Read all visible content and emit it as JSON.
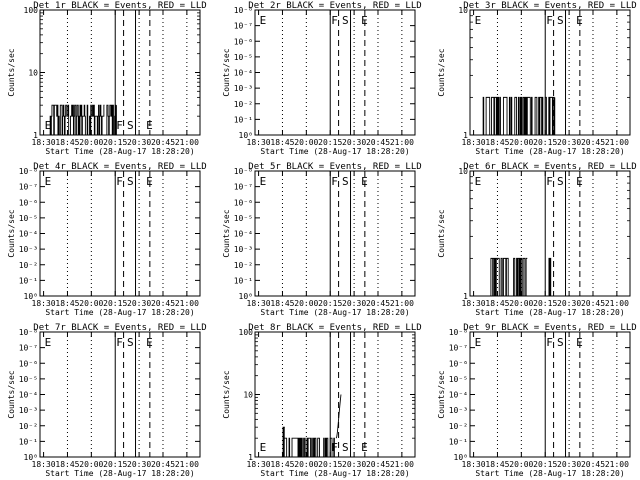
{
  "chart_data": [
    {
      "title": "Det 1r BLACK = Events, RED = LLD",
      "type": "line",
      "ylabel": "Counts/sec",
      "xlabel": "Start Time (28-Aug-17 18:28:20)",
      "yscale": "log",
      "ylim": [
        1,
        100
      ],
      "ytick_labels": [
        "1",
        "10",
        "100"
      ],
      "x_tick_labels": [
        "18:30",
        "18:45",
        "20:00",
        "20:15",
        "20:30",
        "20:45",
        "21:00"
      ],
      "markers": [
        {
          "label": "E",
          "x": 0.0
        },
        {
          "label": "F",
          "x": 3.0
        },
        {
          "label": "S",
          "x": 3.45
        },
        {
          "label": "E",
          "x": 4.25
        }
      ],
      "dotted_x": [
        1,
        2,
        4,
        5,
        6
      ],
      "solid_x": [
        3.0,
        3.85
      ],
      "dashed_x": [
        3.35,
        4.45
      ],
      "series": [
        {
          "color": "#000000",
          "segments": [
            {
              "x_range": [
                0.25,
                2.55
              ],
              "levels": [
                1,
                2,
                3
              ],
              "style": "spiky"
            },
            {
              "x_range": [
                2.6,
                3.05
              ],
              "levels": [
                1,
                2,
                3
              ],
              "style": "spiky"
            }
          ]
        }
      ]
    },
    {
      "title": "Det 2r BLACK = Events, RED = LLD",
      "type": "line",
      "ylabel": "Counts/sec",
      "xlabel": "Start Time (28-Aug-17 18:28:20)",
      "yscale": "log",
      "ylim": [
        1e-09,
        1
      ],
      "ytick_labels": [
        "10⁰",
        "10⁻¹",
        "10⁻²",
        "10⁻³",
        "10⁻⁴",
        "10⁻⁵",
        "10⁻⁶",
        "10⁻⁷",
        "10⁻⁸"
      ],
      "x_tick_labels": [
        "18:30",
        "18:45",
        "20:00",
        "20:15",
        "20:30",
        "20:45",
        "21:00"
      ],
      "markers": [
        {
          "label": "E",
          "x": 0.0
        },
        {
          "label": "F",
          "x": 3.0
        },
        {
          "label": "S",
          "x": 3.45
        },
        {
          "label": "E",
          "x": 4.25
        }
      ],
      "dotted_x": [
        1,
        2,
        4,
        5,
        6
      ],
      "solid_x": [
        3.0,
        3.85
      ],
      "dashed_x": [
        3.35,
        4.45
      ],
      "series": []
    },
    {
      "title": "Det 3r BLACK = Events, RED = LLD",
      "type": "line",
      "ylabel": "Counts/sec",
      "xlabel": "Start Time (28-Aug-17 18:28:20)",
      "yscale": "log",
      "ylim": [
        1,
        10
      ],
      "ytick_labels": [
        "1",
        "10"
      ],
      "x_tick_labels": [
        "18:30",
        "18:45",
        "20:00",
        "20:15",
        "20:30",
        "20:45",
        "21:00"
      ],
      "markers": [
        {
          "label": "E",
          "x": 0.0
        },
        {
          "label": "F",
          "x": 3.0
        },
        {
          "label": "S",
          "x": 3.45
        },
        {
          "label": "E",
          "x": 4.25
        }
      ],
      "dotted_x": [
        1,
        2,
        4,
        5,
        6
      ],
      "solid_x": [
        3.0,
        3.85
      ],
      "dashed_x": [
        3.35,
        4.45
      ],
      "series": [
        {
          "color": "#000000",
          "segments": [
            {
              "x_range": [
                0.35,
                3.4
              ],
              "levels": [
                1,
                2
              ],
              "style": "dense"
            }
          ]
        }
      ]
    },
    {
      "title": "Det 4r BLACK = Events, RED = LLD",
      "type": "line",
      "ylabel": "Counts/sec",
      "xlabel": "Start Time (28-Aug-17 18:28:20)",
      "yscale": "log",
      "ylim": [
        1e-09,
        1
      ],
      "ytick_labels": [
        "10⁰",
        "10⁻¹",
        "10⁻²",
        "10⁻³",
        "10⁻⁴",
        "10⁻⁵",
        "10⁻⁶",
        "10⁻⁷",
        "10⁻⁸"
      ],
      "x_tick_labels": [
        "18:30",
        "18:45",
        "20:00",
        "20:15",
        "20:30",
        "20:45",
        "21:00"
      ],
      "markers": [
        {
          "label": "E",
          "x": 0.0
        },
        {
          "label": "F",
          "x": 3.0
        },
        {
          "label": "S",
          "x": 3.45
        },
        {
          "label": "E",
          "x": 4.25
        }
      ],
      "dotted_x": [
        1,
        2,
        4,
        5,
        6
      ],
      "solid_x": [
        3.0,
        3.85
      ],
      "dashed_x": [
        3.35,
        4.45
      ],
      "series": []
    },
    {
      "title": "Det 5r BLACK = Events, RED = LLD",
      "type": "line",
      "ylabel": "Counts/sec",
      "xlabel": "Start Time (28-Aug-17 18:28:20)",
      "yscale": "log",
      "ylim": [
        1e-09,
        1
      ],
      "ytick_labels": [
        "10⁰",
        "10⁻¹",
        "10⁻²",
        "10⁻³",
        "10⁻⁴",
        "10⁻⁵",
        "10⁻⁶",
        "10⁻⁷",
        "10⁻⁸"
      ],
      "x_tick_labels": [
        "18:30",
        "18:45",
        "20:00",
        "20:15",
        "20:30",
        "20:45",
        "21:00"
      ],
      "markers": [
        {
          "label": "E",
          "x": 0.0
        },
        {
          "label": "F",
          "x": 3.0
        },
        {
          "label": "S",
          "x": 3.45
        },
        {
          "label": "E",
          "x": 4.25
        }
      ],
      "dotted_x": [
        1,
        2,
        4,
        5,
        6
      ],
      "solid_x": [
        3.0,
        3.85
      ],
      "dashed_x": [
        3.35,
        4.45
      ],
      "series": []
    },
    {
      "title": "Det 6r BLACK = Events, RED = LLD",
      "type": "line",
      "ylabel": "Counts/sec",
      "xlabel": "Start Time (28-Aug-17 18:28:20)",
      "yscale": "log",
      "ylim": [
        1,
        10
      ],
      "ytick_labels": [
        "1",
        "10"
      ],
      "x_tick_labels": [
        "18:30",
        "18:45",
        "20:00",
        "20:15",
        "20:30",
        "20:45",
        "21:00"
      ],
      "markers": [
        {
          "label": "E",
          "x": 0.0
        },
        {
          "label": "F",
          "x": 3.0
        },
        {
          "label": "S",
          "x": 3.45
        },
        {
          "label": "E",
          "x": 4.25
        }
      ],
      "dotted_x": [
        1,
        2,
        4,
        5,
        6
      ],
      "solid_x": [
        3.0,
        3.85
      ],
      "dashed_x": [
        3.35,
        4.45
      ],
      "series": [
        {
          "color": "#000000",
          "segments": [
            {
              "x_range": [
                0.7,
                2.25
              ],
              "levels": [
                1,
                2
              ],
              "style": "dense"
            },
            {
              "x_range": [
                3.1,
                3.25
              ],
              "levels": [
                1,
                2
              ],
              "style": "dense"
            }
          ]
        }
      ]
    },
    {
      "title": "Det 7r BLACK = Events, RED = LLD",
      "type": "line",
      "ylabel": "Counts/sec",
      "xlabel": "Start Time (28-Aug-17 18:28:20)",
      "yscale": "log",
      "ylim": [
        1e-09,
        1
      ],
      "ytick_labels": [
        "10⁰",
        "10⁻¹",
        "10⁻²",
        "10⁻³",
        "10⁻⁴",
        "10⁻⁵",
        "10⁻⁶",
        "10⁻⁷",
        "10⁻⁸"
      ],
      "x_tick_labels": [
        "18:30",
        "18:45",
        "20:00",
        "20:15",
        "20:30",
        "20:45",
        "21:00"
      ],
      "markers": [
        {
          "label": "E",
          "x": 0.0
        },
        {
          "label": "F",
          "x": 3.0
        },
        {
          "label": "S",
          "x": 3.45
        },
        {
          "label": "E",
          "x": 4.25
        }
      ],
      "dotted_x": [
        1,
        2,
        4,
        5,
        6
      ],
      "solid_x": [
        3.0,
        3.85
      ],
      "dashed_x": [
        3.35,
        4.45
      ],
      "series": []
    },
    {
      "title": "Det 8r BLACK = Events, RED = LLD",
      "type": "line",
      "ylabel": "Counts/sec",
      "xlabel": "Start Time (28-Aug-17 18:28:20)",
      "yscale": "log",
      "ylim": [
        1,
        100
      ],
      "ytick_labels": [
        "1",
        "10",
        "100"
      ],
      "x_tick_labels": [
        "18:30",
        "18:45",
        "20:00",
        "20:15",
        "20:30",
        "20:45",
        "21:00"
      ],
      "markers": [
        {
          "label": "E",
          "x": 0.0
        },
        {
          "label": "F",
          "x": 3.0
        },
        {
          "label": "S",
          "x": 3.45
        },
        {
          "label": "E",
          "x": 4.25
        }
      ],
      "dotted_x": [
        1,
        2,
        4,
        5,
        6
      ],
      "solid_x": [
        3.0,
        3.85
      ],
      "dashed_x": [
        3.35,
        4.45
      ],
      "series": [
        {
          "color": "#000000",
          "segments": [
            {
              "x_range": [
                1.0,
                3.25
              ],
              "levels": [
                1,
                2
              ],
              "style": "dense"
            },
            {
              "x_range": [
                0.9,
                1.1
              ],
              "levels": [
                1,
                3
              ],
              "style": "spiky"
            },
            {
              "x_range": [
                3.25,
                3.45
              ],
              "levels": [
                2,
                10
              ],
              "style": "ramp"
            }
          ]
        }
      ]
    },
    {
      "title": "Det 9r BLACK = Events, RED = LLD",
      "type": "line",
      "ylabel": "Counts/sec",
      "xlabel": "Start Time (28-Aug-17 18:28:20)",
      "yscale": "log",
      "ylim": [
        1e-09,
        1
      ],
      "ytick_labels": [
        "10⁰",
        "10⁻¹",
        "10⁻²",
        "10⁻³",
        "10⁻⁴",
        "10⁻⁵",
        "10⁻⁶",
        "10⁻⁷",
        "10⁻⁸"
      ],
      "x_tick_labels": [
        "18:30",
        "18:45",
        "20:00",
        "20:15",
        "20:30",
        "20:45",
        "21:00"
      ],
      "markers": [
        {
          "label": "E",
          "x": 0.0
        },
        {
          "label": "F",
          "x": 3.0
        },
        {
          "label": "S",
          "x": 3.45
        },
        {
          "label": "E",
          "x": 4.25
        }
      ],
      "dotted_x": [
        1,
        2,
        4,
        5,
        6
      ],
      "solid_x": [
        3.0,
        3.85
      ],
      "dashed_x": [
        3.35,
        4.45
      ],
      "series": []
    }
  ]
}
